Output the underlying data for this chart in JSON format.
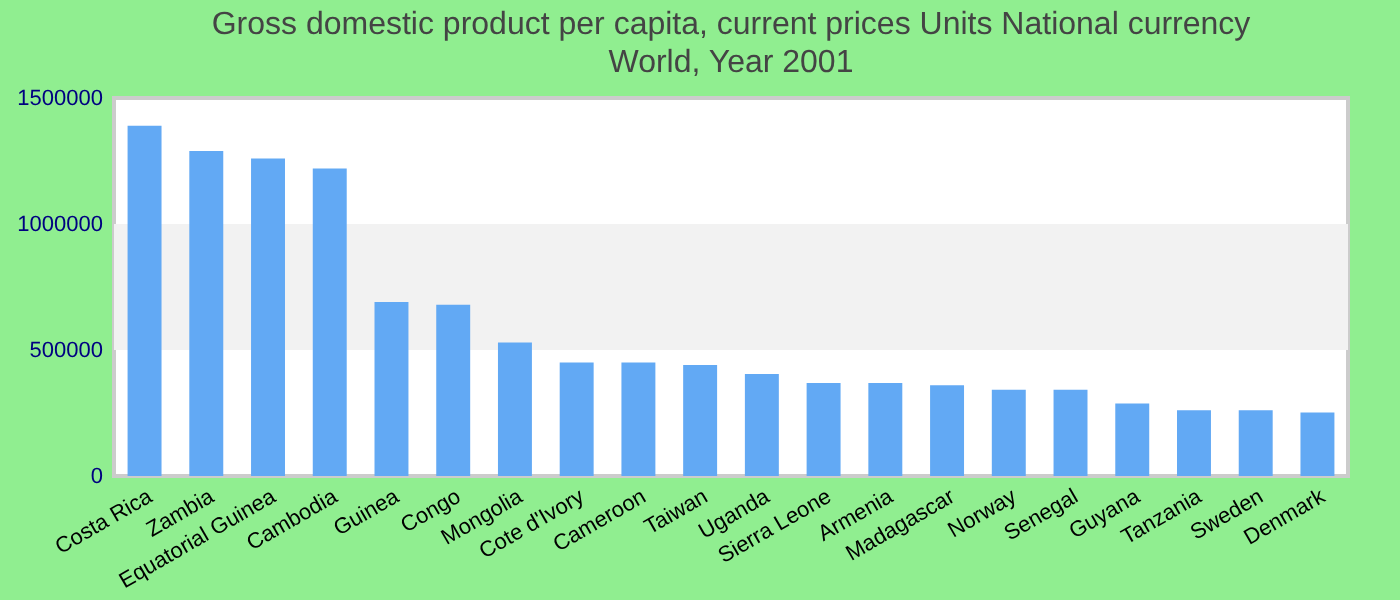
{
  "chart_data": {
    "type": "bar",
    "title": "Gross domestic product per capita, current prices Units National currency",
    "subtitle": "World, Year 2001",
    "categories": [
      "Costa Rica",
      "Zambia",
      "Equatorial Guinea",
      "Cambodia",
      "Guinea",
      "Congo",
      "Mongolia",
      "Cote d'Ivory",
      "Cameroon",
      "Taiwan",
      "Uganda",
      "Sierra Leone",
      "Armenia",
      "Madagascar",
      "Norway",
      "Senegal",
      "Guyana",
      "Tanzania",
      "Sweden",
      "Denmark"
    ],
    "values": [
      1390000,
      1290000,
      1260000,
      1220000,
      690000,
      680000,
      530000,
      450000,
      450000,
      440000,
      405000,
      369000,
      369000,
      360000,
      342000,
      342000,
      288000,
      261000,
      261000,
      252000
    ],
    "color": "#62a9f4",
    "ylim": [
      0,
      1500000
    ],
    "yticks": [
      0,
      500000,
      1000000,
      1500000
    ],
    "bands": [
      {
        "axis": "y",
        "from": 500000,
        "to": 1000000,
        "color": "#f2f2f2"
      }
    ]
  }
}
